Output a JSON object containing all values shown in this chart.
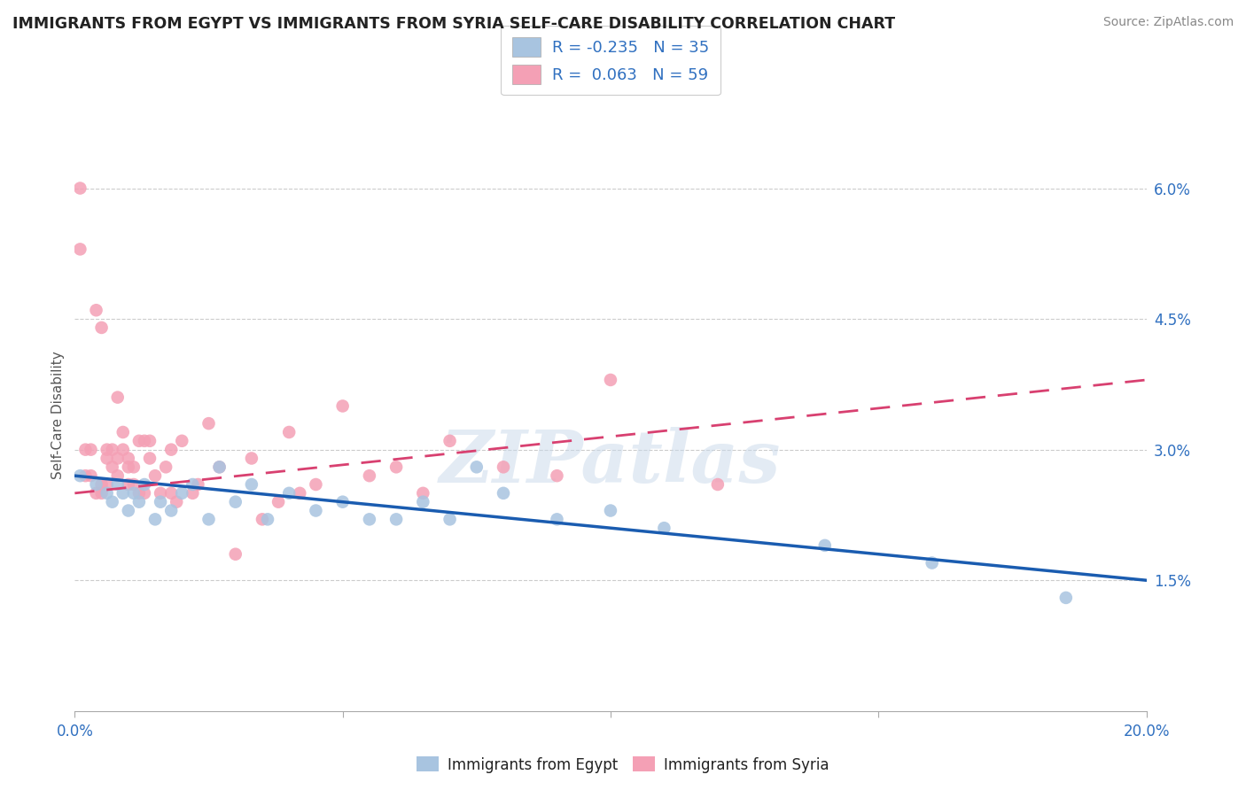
{
  "title": "IMMIGRANTS FROM EGYPT VS IMMIGRANTS FROM SYRIA SELF-CARE DISABILITY CORRELATION CHART",
  "source": "Source: ZipAtlas.com",
  "ylabel": "Self-Care Disability",
  "xmin": 0.0,
  "xmax": 0.2,
  "ymin": 0.0,
  "ymax": 0.068,
  "yticks": [
    0.015,
    0.03,
    0.045,
    0.06
  ],
  "ytick_labels": [
    "1.5%",
    "3.0%",
    "4.5%",
    "6.0%"
  ],
  "xticks": [
    0.0,
    0.05,
    0.1,
    0.15,
    0.2
  ],
  "xtick_labels": [
    "0.0%",
    "",
    "",
    "",
    "20.0%"
  ],
  "egypt_R": -0.235,
  "egypt_N": 35,
  "syria_R": 0.063,
  "syria_N": 59,
  "egypt_color": "#a8c4e0",
  "syria_color": "#f4a0b5",
  "egypt_line_color": "#1a5cb0",
  "syria_line_color": "#d84070",
  "watermark": "ZIPatlas",
  "egypt_x": [
    0.001,
    0.004,
    0.006,
    0.007,
    0.008,
    0.009,
    0.01,
    0.011,
    0.012,
    0.013,
    0.015,
    0.016,
    0.018,
    0.02,
    0.022,
    0.025,
    0.027,
    0.03,
    0.033,
    0.036,
    0.04,
    0.045,
    0.05,
    0.055,
    0.06,
    0.065,
    0.07,
    0.075,
    0.08,
    0.09,
    0.1,
    0.11,
    0.14,
    0.16,
    0.185
  ],
  "egypt_y": [
    0.027,
    0.026,
    0.025,
    0.024,
    0.026,
    0.025,
    0.023,
    0.025,
    0.024,
    0.026,
    0.022,
    0.024,
    0.023,
    0.025,
    0.026,
    0.022,
    0.028,
    0.024,
    0.026,
    0.022,
    0.025,
    0.023,
    0.024,
    0.022,
    0.022,
    0.024,
    0.022,
    0.028,
    0.025,
    0.022,
    0.023,
    0.021,
    0.019,
    0.017,
    0.013
  ],
  "syria_x": [
    0.001,
    0.001,
    0.002,
    0.002,
    0.003,
    0.003,
    0.004,
    0.004,
    0.005,
    0.005,
    0.005,
    0.006,
    0.006,
    0.006,
    0.007,
    0.007,
    0.008,
    0.008,
    0.008,
    0.009,
    0.009,
    0.01,
    0.01,
    0.01,
    0.011,
    0.011,
    0.012,
    0.012,
    0.013,
    0.013,
    0.014,
    0.014,
    0.015,
    0.016,
    0.017,
    0.018,
    0.018,
    0.019,
    0.02,
    0.022,
    0.023,
    0.025,
    0.027,
    0.03,
    0.033,
    0.035,
    0.038,
    0.04,
    0.042,
    0.045,
    0.05,
    0.055,
    0.06,
    0.065,
    0.07,
    0.08,
    0.09,
    0.1,
    0.12
  ],
  "syria_y": [
    0.06,
    0.053,
    0.03,
    0.027,
    0.03,
    0.027,
    0.046,
    0.025,
    0.044,
    0.026,
    0.025,
    0.03,
    0.029,
    0.026,
    0.03,
    0.028,
    0.036,
    0.029,
    0.027,
    0.032,
    0.03,
    0.029,
    0.028,
    0.026,
    0.028,
    0.026,
    0.031,
    0.025,
    0.031,
    0.025,
    0.029,
    0.031,
    0.027,
    0.025,
    0.028,
    0.025,
    0.03,
    0.024,
    0.031,
    0.025,
    0.026,
    0.033,
    0.028,
    0.018,
    0.029,
    0.022,
    0.024,
    0.032,
    0.025,
    0.026,
    0.035,
    0.027,
    0.028,
    0.025,
    0.031,
    0.028,
    0.027,
    0.038,
    0.026
  ],
  "egypt_line_x": [
    0.0,
    0.2
  ],
  "egypt_line_y": [
    0.027,
    0.015
  ],
  "syria_line_x": [
    0.0,
    0.2
  ],
  "syria_line_y": [
    0.025,
    0.038
  ]
}
